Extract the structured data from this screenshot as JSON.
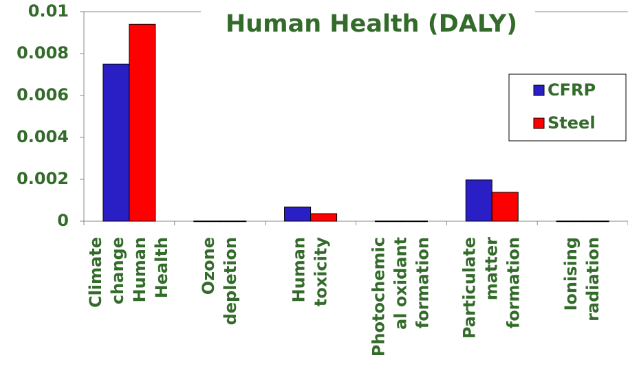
{
  "chart_data": {
    "type": "bar",
    "title": "Human Health (DALY)",
    "categories": [
      [
        "Climate",
        "change",
        "Human",
        "Health"
      ],
      [
        "Ozone",
        "depletion"
      ],
      [
        "Human",
        "toxicity"
      ],
      [
        "Photochemic",
        "al oxidant",
        "formation"
      ],
      [
        "Particulate",
        "matter",
        "formation"
      ],
      [
        "Ionising",
        "radiation"
      ]
    ],
    "series": [
      {
        "name": "CFRP",
        "color": "#2a1fc4",
        "values": [
          0.0075,
          1e-05,
          0.00068,
          1e-05,
          0.00197,
          1e-05
        ]
      },
      {
        "name": "Steel",
        "color": "#ff0000",
        "values": [
          0.0094,
          1e-05,
          0.00036,
          1e-05,
          0.00138,
          1e-05
        ]
      }
    ],
    "ylim": [
      0,
      0.01
    ],
    "yticks": [
      0,
      0.002,
      0.004,
      0.006,
      0.008,
      0.01
    ],
    "legend": "right",
    "grid": false
  }
}
